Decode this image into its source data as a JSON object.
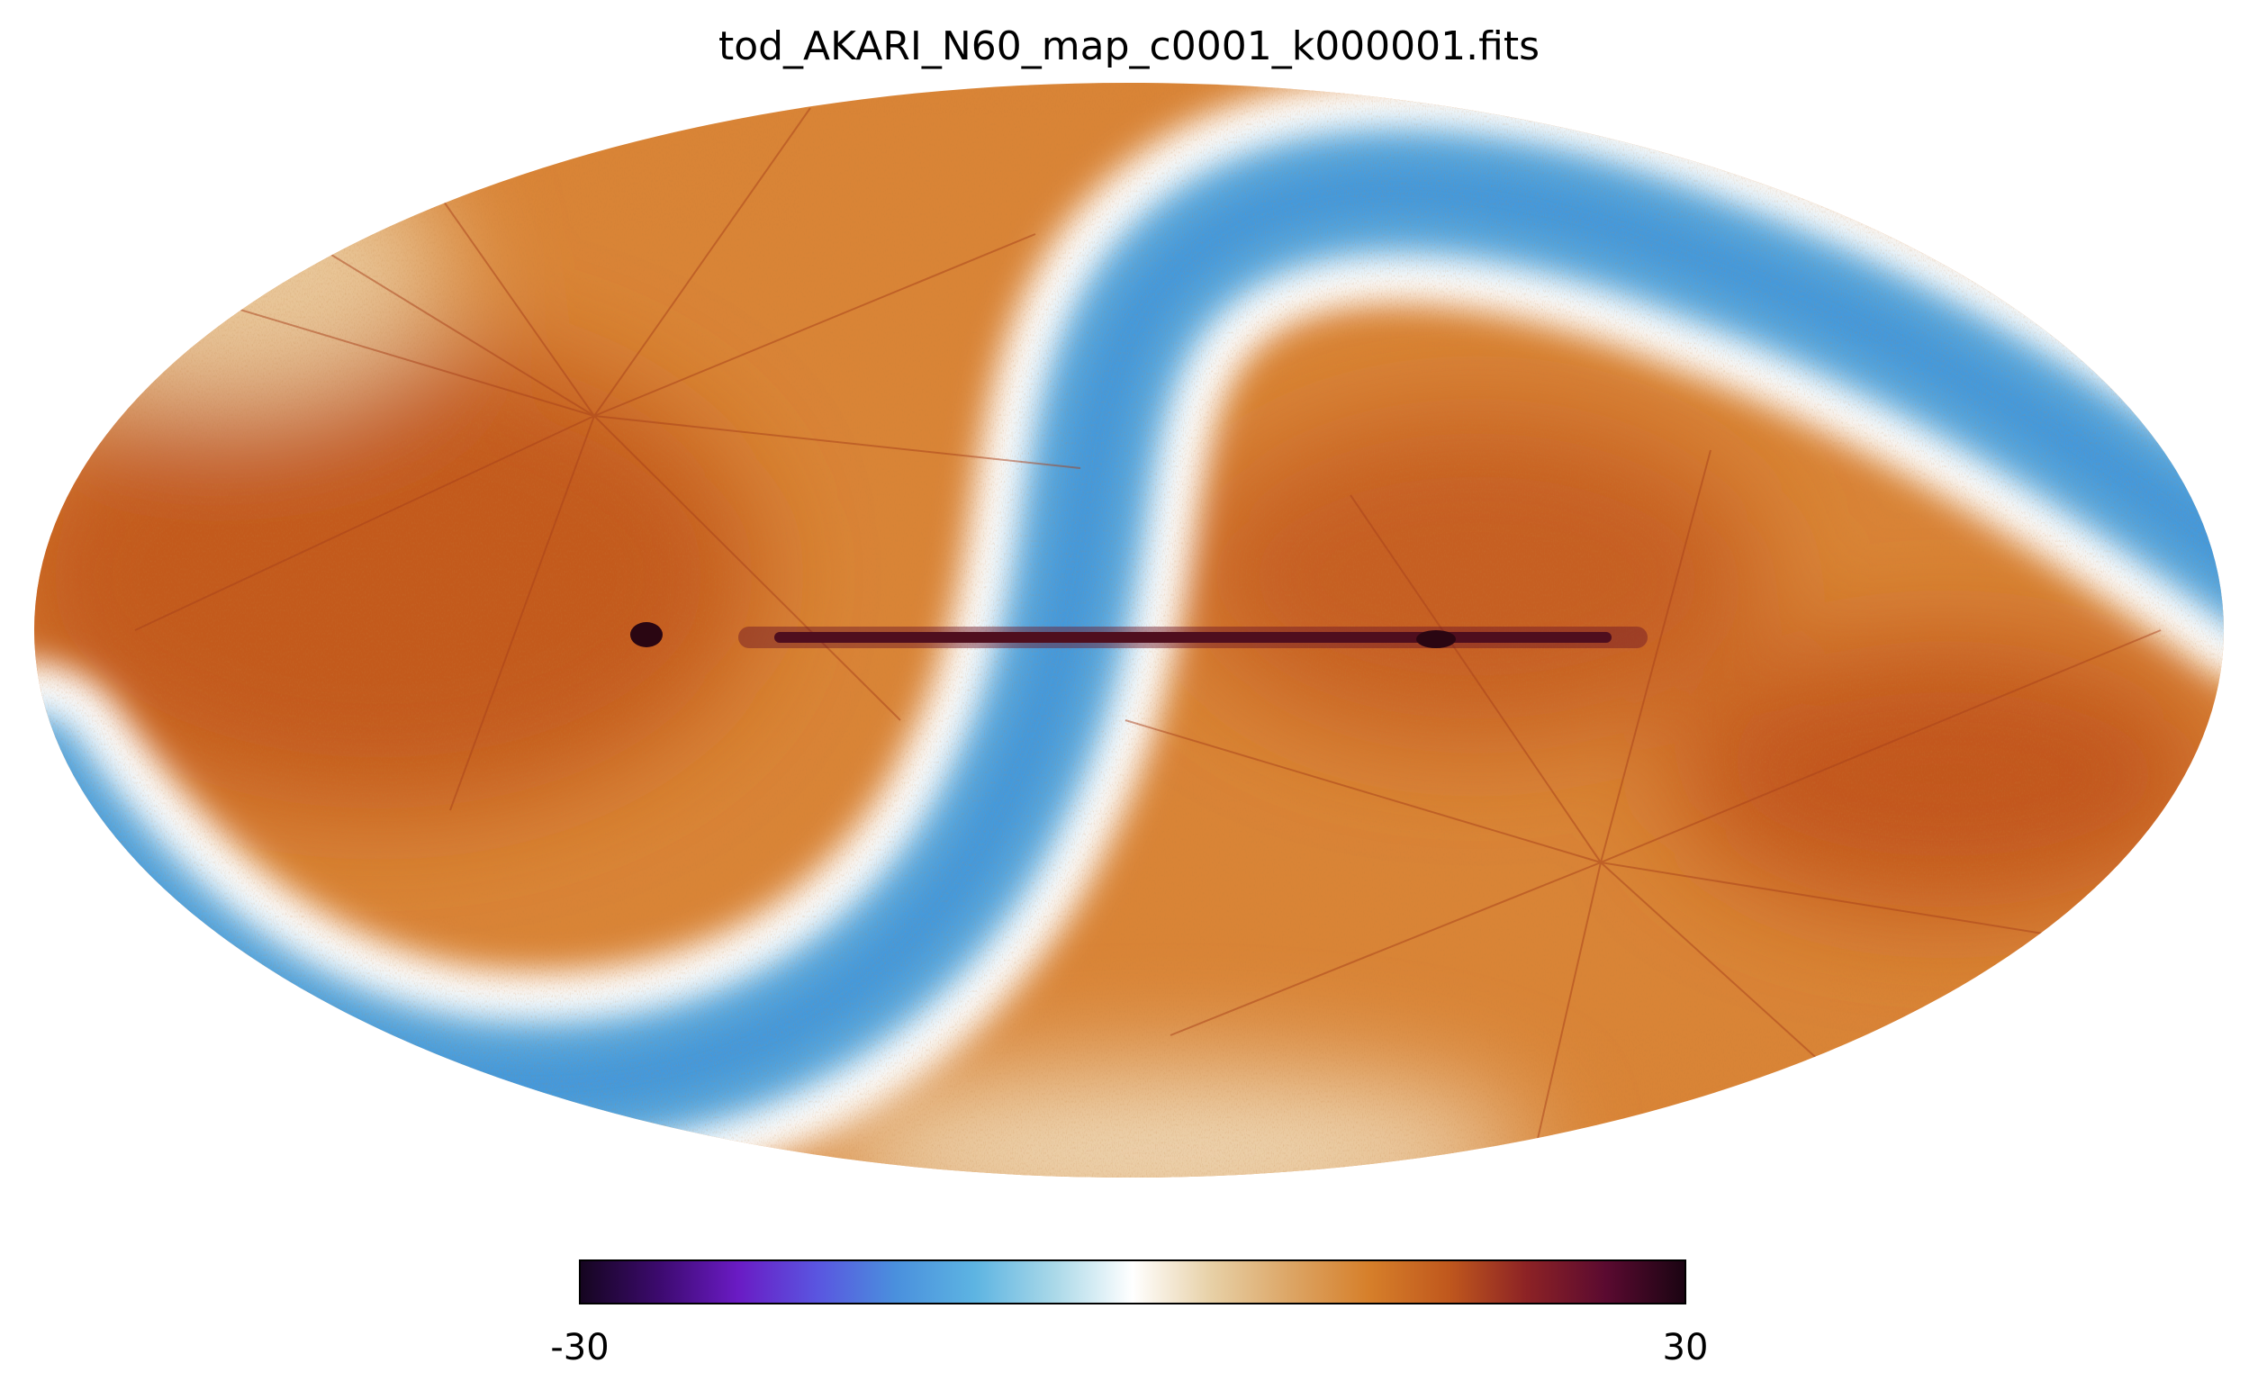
{
  "chart_data": {
    "type": "heatmap",
    "projection": "Mollweide all-sky",
    "title": "tod_AKARI_N60_map_c0001_k000001.fits",
    "xlabel": "",
    "ylabel": "",
    "grid": false,
    "colorbar": {
      "min": -30,
      "max": 30,
      "min_label": "-30",
      "max_label": "30",
      "orientation": "horizontal",
      "placement": "bottom",
      "colormap_stops": [
        "#15051f",
        "#3c0a6e",
        "#6a1bc4",
        "#5a55e0",
        "#4a90dd",
        "#5db4e2",
        "#a9d8e8",
        "#ffffff",
        "#e7d0a6",
        "#dca565",
        "#d67f2a",
        "#c0581d",
        "#8c2225",
        "#5a0a30",
        "#1a0412"
      ]
    },
    "features": {
      "background_value_color": "#d98436",
      "deep_background_color": "#c65a1f",
      "negative_band_color": "#4a9ddc",
      "galactic_plane_color": "#3a0a18",
      "scan_poles": [
        "upper-left",
        "lower-right"
      ]
    }
  }
}
